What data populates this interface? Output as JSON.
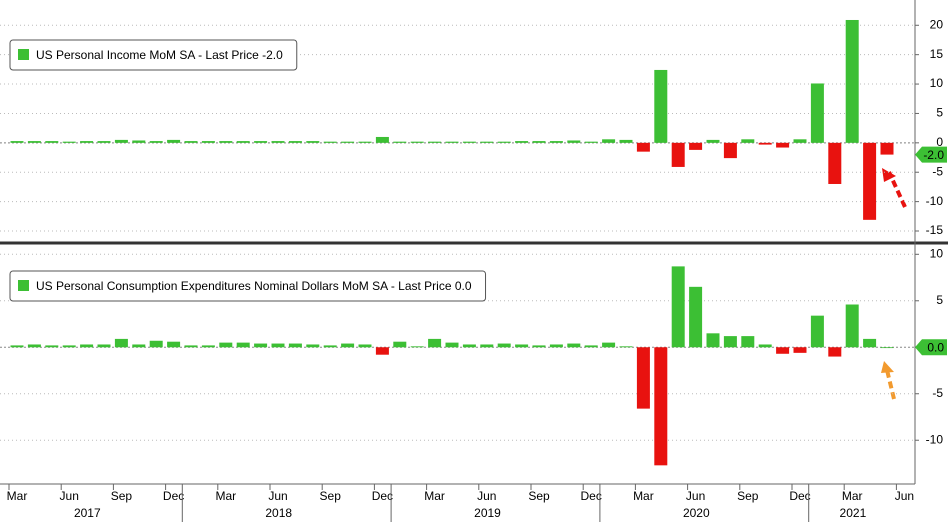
{
  "chart_data": [
    {
      "type": "bar",
      "legend": "US Personal Income MoM SA - Last Price -2.0",
      "values": [
        0.3,
        0.3,
        0.3,
        0.2,
        0.3,
        0.3,
        0.5,
        0.4,
        0.3,
        0.5,
        0.3,
        0.3,
        0.3,
        0.3,
        0.3,
        0.3,
        0.3,
        0.3,
        0.2,
        0.2,
        0.2,
        1.0,
        0.2,
        0.2,
        0.2,
        0.2,
        0.2,
        0.2,
        0.2,
        0.3,
        0.3,
        0.3,
        0.4,
        0.2,
        0.6,
        0.5,
        -1.5,
        12.4,
        -4.1,
        -1.2,
        0.5,
        -2.6,
        0.6,
        -0.3,
        -0.8,
        0.6,
        10.1,
        -7.0,
        20.9,
        -13.1,
        -2.0,
        null
      ],
      "positive_color": "#3cbf34",
      "negative_color": "#e8120f",
      "ylim": [
        -16.7,
        24.3
      ],
      "yticks": [
        20,
        15,
        10,
        5,
        0,
        -5,
        -10,
        -15
      ],
      "last_price": {
        "value": -2,
        "label": "-2.0"
      },
      "grid": true
    },
    {
      "type": "bar",
      "legend": "US Personal Consumption Expenditures Nominal Dollars MoM SA - Last Price 0.0",
      "values": [
        0.2,
        0.3,
        0.2,
        0.2,
        0.3,
        0.3,
        0.9,
        0.3,
        0.7,
        0.6,
        0.2,
        0.2,
        0.5,
        0.5,
        0.4,
        0.4,
        0.4,
        0.3,
        0.2,
        0.4,
        0.3,
        -0.8,
        0.6,
        0.1,
        0.9,
        0.5,
        0.3,
        0.3,
        0.4,
        0.3,
        0.2,
        0.3,
        0.4,
        0.2,
        0.5,
        0.1,
        -6.6,
        -12.7,
        8.7,
        6.5,
        1.5,
        1.2,
        1.2,
        0.3,
        -0.7,
        -0.6,
        3.4,
        -1.0,
        4.6,
        0.9,
        0.0,
        null
      ],
      "positive_color": "#3cbf34",
      "negative_color": "#e8120f",
      "ylim": [
        -14.6,
        11.0
      ],
      "yticks": [
        10,
        5,
        -5,
        -10
      ],
      "last_price": {
        "value": 0,
        "label": "0.0"
      },
      "grid": true,
      "categories": [
        "Mar",
        null,
        null,
        "Jun",
        null,
        null,
        "Sep",
        null,
        null,
        "Dec",
        null,
        null,
        "Mar",
        null,
        null,
        "Jun",
        null,
        null,
        "Sep",
        null,
        null,
        "Dec",
        null,
        null,
        "Mar",
        null,
        null,
        "Jun",
        null,
        null,
        "Sep",
        null,
        null,
        "Dec",
        null,
        null,
        "Mar",
        null,
        null,
        "Jun",
        null,
        null,
        "Sep",
        null,
        null,
        "Dec",
        null,
        null,
        "Mar",
        null,
        null,
        "Jun"
      ],
      "years": [
        "2017",
        "2018",
        "2019",
        "2020",
        "2021"
      ]
    }
  ]
}
